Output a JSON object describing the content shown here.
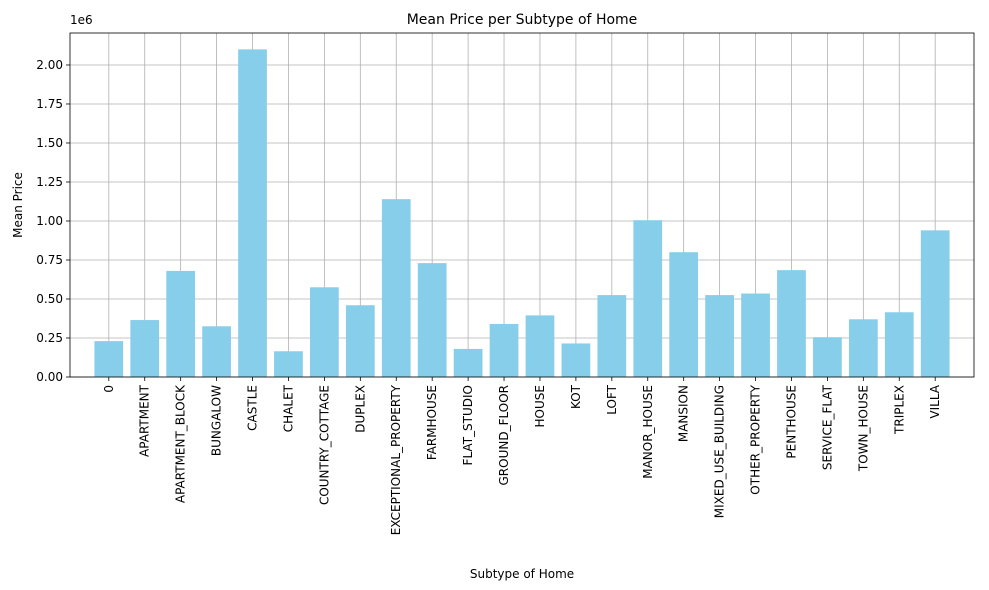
{
  "chart_data": {
    "type": "bar",
    "title": "Mean Price per Subtype of Home",
    "xlabel": "Subtype of Home",
    "ylabel": "Mean Price",
    "y_offset_text": "1e6",
    "categories": [
      "0",
      "APARTMENT",
      "APARTMENT_BLOCK",
      "BUNGALOW",
      "CASTLE",
      "CHALET",
      "COUNTRY_COTTAGE",
      "DUPLEX",
      "EXCEPTIONAL_PROPERTY",
      "FARMHOUSE",
      "FLAT_STUDIO",
      "GROUND_FLOOR",
      "HOUSE",
      "KOT",
      "LOFT",
      "MANOR_HOUSE",
      "MANSION",
      "MIXED_USE_BUILDING",
      "OTHER_PROPERTY",
      "PENTHOUSE",
      "SERVICE_FLAT",
      "TOWN_HOUSE",
      "TRIPLEX",
      "VILLA"
    ],
    "values": [
      230000,
      365000,
      680000,
      325000,
      2100000,
      165000,
      575000,
      460000,
      1140000,
      730000,
      180000,
      340000,
      395000,
      215000,
      525000,
      1005000,
      800000,
      525000,
      535000,
      685000,
      255000,
      370000,
      415000,
      940000
    ],
    "yticks": [
      0,
      250000,
      500000,
      750000,
      1000000,
      1250000,
      1500000,
      1750000,
      2000000
    ],
    "ytick_labels": [
      "0.00",
      "0.25",
      "0.50",
      "0.75",
      "1.00",
      "1.25",
      "1.50",
      "1.75",
      "2.00"
    ],
    "ylim": [
      0,
      2205000
    ],
    "grid": true,
    "bar_color": "#87ceeb"
  }
}
